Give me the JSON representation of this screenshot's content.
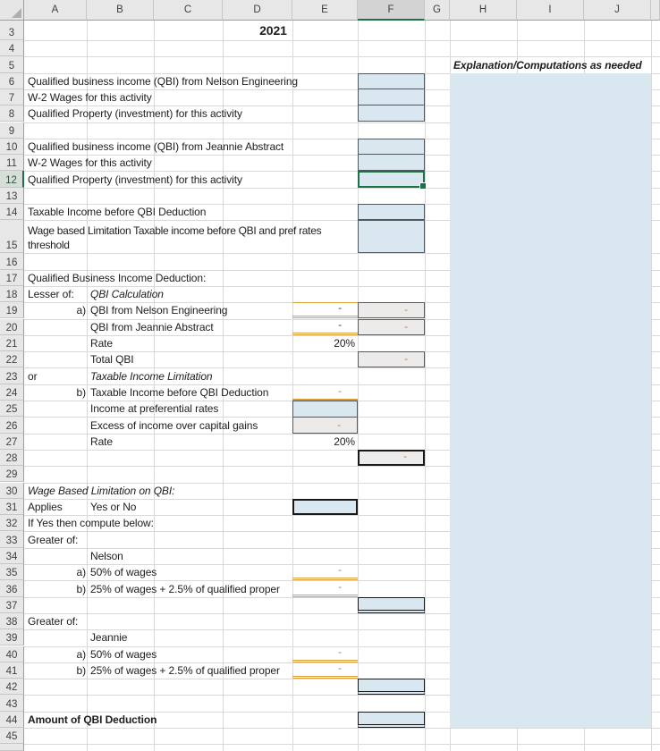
{
  "sheet_title": "QBI Deduction worksheet",
  "columns": [
    "A",
    "B",
    "C",
    "D",
    "E",
    "F",
    "G",
    "H",
    "I",
    "J"
  ],
  "rows": [
    "3",
    "4",
    "5",
    "6",
    "7",
    "8",
    "9",
    "10",
    "11",
    "12",
    "13",
    "14",
    "15",
    "16",
    "17",
    "18",
    "19",
    "20",
    "21",
    "22",
    "23",
    "24",
    "25",
    "26",
    "27",
    "28",
    "29",
    "30",
    "31",
    "32",
    "33",
    "34",
    "35",
    "36",
    "37",
    "38",
    "39",
    "40",
    "41",
    "42",
    "43",
    "44",
    "45"
  ],
  "selection": {
    "active_cell": "F12",
    "column": "F",
    "row": "12"
  },
  "explanation_area": {
    "range": "H6:J44",
    "fill": "#D9E8F0"
  },
  "colors": {
    "input_fill_blue": "#D9E8F0",
    "computed_fill_gray": "#ECEBE9",
    "accent_gold_border": "#DCA13D",
    "dash_orange": "#C57A4E",
    "selection_green": "#1E7145",
    "gridline": "#D9D9D9"
  },
  "cells": [
    {
      "r": 3,
      "c": "D",
      "text": "2021",
      "cls": "bold title",
      "name": "year-title",
      "inter": true
    },
    {
      "r": 5,
      "c": "H",
      "span": "J",
      "text": "Explanation/Computations as needed",
      "cls": "bold italic",
      "name": "explanation-header",
      "inter": false
    },
    {
      "r": 6,
      "c": "A",
      "span": "E",
      "text": "Qualified business income (QBI) from Nelson Engineering",
      "cls": "",
      "name": "label-qbi-nelson",
      "inter": true
    },
    {
      "r": 7,
      "c": "A",
      "span": "E",
      "text": "W-2 Wages for this activity",
      "cls": "",
      "name": "label-w2-wages-nelson",
      "inter": true
    },
    {
      "r": 8,
      "c": "A",
      "span": "E",
      "text": "Qualified Property (investment) for this activity",
      "cls": "",
      "name": "label-qualified-property-nelson",
      "inter": true
    },
    {
      "r": 10,
      "c": "A",
      "span": "E",
      "text": "Qualified business income (QBI) from Jeannie Abstract",
      "cls": "",
      "name": "label-qbi-jeannie",
      "inter": true
    },
    {
      "r": 11,
      "c": "A",
      "span": "E",
      "text": "W-2 Wages for this activity",
      "cls": "",
      "name": "label-w2-wages-jeannie",
      "inter": true
    },
    {
      "r": 12,
      "c": "A",
      "span": "E",
      "text": "Qualified Property (investment) for this activity",
      "cls": "",
      "name": "label-qualified-property-jeannie",
      "inter": true
    },
    {
      "r": 14,
      "c": "A",
      "span": "E",
      "text": "Taxable Income before QBI Deduction",
      "cls": "",
      "name": "label-taxable-income",
      "inter": true
    },
    {
      "r": 15,
      "c": "A",
      "span": "E",
      "text": "Wage based Limitation Taxable income before QBI and pref rates threshold",
      "cls": "wrap",
      "name": "label-wage-limitation-threshold",
      "inter": true
    },
    {
      "r": 17,
      "c": "A",
      "span": "E",
      "text": "Qualified Business Income Deduction:",
      "cls": "",
      "name": "label-qbi-deduction-section",
      "inter": true
    },
    {
      "r": 18,
      "c": "A",
      "text": "Lesser of:",
      "cls": "",
      "name": "label-lesser-of",
      "inter": true
    },
    {
      "r": 18,
      "c": "B",
      "span": "D",
      "text": "QBI Calculation",
      "cls": "italic",
      "name": "label-qbi-calculation",
      "inter": true
    },
    {
      "r": 19,
      "c": "A",
      "text": "a)",
      "cls": "right",
      "name": "label-a-qbi",
      "inter": true
    },
    {
      "r": 19,
      "c": "B",
      "span": "D",
      "text": "QBI from Nelson Engineering",
      "cls": "",
      "name": "label-qbi-from-nelson",
      "inter": true
    },
    {
      "r": 20,
      "c": "B",
      "span": "D",
      "text": "QBI from Jeannie Abstract",
      "cls": "",
      "name": "label-qbi-from-jeannie",
      "inter": true
    },
    {
      "r": 21,
      "c": "B",
      "span": "D",
      "text": "Rate",
      "cls": "",
      "name": "label-rate-1",
      "inter": true
    },
    {
      "r": 22,
      "c": "B",
      "span": "D",
      "text": "Total QBI",
      "cls": "",
      "name": "label-total-qbi",
      "inter": true
    },
    {
      "r": 23,
      "c": "A",
      "text": "or",
      "cls": "",
      "name": "label-or",
      "inter": true
    },
    {
      "r": 23,
      "c": "B",
      "span": "D",
      "text": "Taxable Income Limitation",
      "cls": "italic",
      "name": "label-taxable-income-limitation",
      "inter": true
    },
    {
      "r": 24,
      "c": "A",
      "text": "b)",
      "cls": "right",
      "name": "label-b-taxable",
      "inter": true
    },
    {
      "r": 24,
      "c": "B",
      "span": "D",
      "text": "Taxable Income before QBI Deduction",
      "cls": "",
      "name": "label-taxable-income-before-qbi",
      "inter": true
    },
    {
      "r": 25,
      "c": "B",
      "span": "D",
      "text": "Income at preferential rates",
      "cls": "",
      "name": "label-income-preferential",
      "inter": true
    },
    {
      "r": 26,
      "c": "B",
      "span": "D",
      "text": "Excess of income over capital gains",
      "cls": "",
      "name": "label-excess-income",
      "inter": true
    },
    {
      "r": 27,
      "c": "B",
      "span": "D",
      "text": "Rate",
      "cls": "",
      "name": "label-rate-2",
      "inter": true
    },
    {
      "r": 30,
      "c": "A",
      "span": "D",
      "text": "Wage Based Limitation on QBI:",
      "cls": "italic",
      "name": "label-wage-based-limitation",
      "inter": true
    },
    {
      "r": 31,
      "c": "A",
      "text": "Applies",
      "cls": "",
      "name": "label-applies",
      "inter": true
    },
    {
      "r": 31,
      "c": "B",
      "span": "D",
      "text": "Yes or No",
      "cls": "",
      "name": "label-yes-or-no",
      "inter": true
    },
    {
      "r": 32,
      "c": "A",
      "span": "D",
      "text": "If Yes then compute below:",
      "cls": "",
      "name": "label-if-yes-compute",
      "inter": true
    },
    {
      "r": 33,
      "c": "A",
      "text": "Greater of:",
      "cls": "",
      "name": "label-greater-of-1",
      "inter": true
    },
    {
      "r": 34,
      "c": "B",
      "text": "Nelson",
      "cls": "",
      "name": "label-nelson",
      "inter": true
    },
    {
      "r": 35,
      "c": "A",
      "text": "a)",
      "cls": "right",
      "name": "label-a-nelson-wages",
      "inter": true
    },
    {
      "r": 35,
      "c": "B",
      "span": "D",
      "text": "50% of wages",
      "cls": "",
      "name": "label-50-wages-nelson",
      "inter": true
    },
    {
      "r": 36,
      "c": "A",
      "text": "b)",
      "cls": "right",
      "name": "label-b-nelson-property",
      "inter": true
    },
    {
      "r": 36,
      "c": "B",
      "span": "D",
      "text": "25% of wages + 2.5% of qualified proper",
      "cls": "clip",
      "name": "label-25-wages-nelson",
      "inter": true
    },
    {
      "r": 38,
      "c": "A",
      "text": "Greater of:",
      "cls": "",
      "name": "label-greater-of-2",
      "inter": true
    },
    {
      "r": 39,
      "c": "B",
      "text": "Jeannie",
      "cls": "",
      "name": "label-jeannie",
      "inter": true
    },
    {
      "r": 40,
      "c": "A",
      "text": "a)",
      "cls": "right",
      "name": "label-a-jeannie-wages",
      "inter": true
    },
    {
      "r": 40,
      "c": "B",
      "span": "D",
      "text": "50% of wages",
      "cls": "",
      "name": "label-50-wages-jeannie",
      "inter": true
    },
    {
      "r": 41,
      "c": "A",
      "text": "b)",
      "cls": "right",
      "name": "label-b-jeannie-property",
      "inter": true
    },
    {
      "r": 41,
      "c": "B",
      "span": "D",
      "text": "25% of wages + 2.5% of qualified proper",
      "cls": "clip",
      "name": "label-25-wages-jeannie",
      "inter": true
    },
    {
      "r": 44,
      "c": "A",
      "span": "E",
      "text": "Amount of QBI Deduction",
      "cls": "bold",
      "name": "label-amount-qbi-deduction",
      "inter": true
    },
    {
      "r": 6,
      "c": "F",
      "text": "",
      "cls": "blue grpTop",
      "name": "input-qbi-nelson",
      "inter": true
    },
    {
      "r": 7,
      "c": "F",
      "text": "",
      "cls": "blue grpMid",
      "name": "input-w2-nelson",
      "inter": true
    },
    {
      "r": 8,
      "c": "F",
      "text": "",
      "cls": "blue grpMid",
      "name": "input-property-nelson",
      "inter": true
    },
    {
      "r": 10,
      "c": "F",
      "text": "",
      "cls": "blue grpTop",
      "name": "input-qbi-jeannie",
      "inter": true
    },
    {
      "r": 11,
      "c": "F",
      "text": "",
      "cls": "blue grpMid",
      "name": "input-w2-jeannie",
      "inter": true
    },
    {
      "r": 12,
      "c": "F",
      "text": "",
      "cls": "blue sel",
      "name": "active-cell-F12",
      "inter": true
    },
    {
      "r": 14,
      "c": "F",
      "text": "",
      "cls": "blue grpTop",
      "name": "input-taxable-income",
      "inter": true
    },
    {
      "r": 15,
      "c": "F",
      "text": "",
      "cls": "blue grpTop",
      "name": "input-wage-limitation-threshold",
      "inter": true
    },
    {
      "r": 19,
      "c": "E",
      "text": "-",
      "cls": "dashD goldTop goldDbl",
      "name": "value-qbi-nelson",
      "inter": true
    },
    {
      "r": 19,
      "c": "F",
      "text": "-",
      "cls": "grayv dashO",
      "name": "calc-qbi-nelson",
      "inter": true
    },
    {
      "r": 20,
      "c": "E",
      "text": "-",
      "cls": "dashD goldDbl",
      "name": "value-qbi-jeannie",
      "inter": true
    },
    {
      "r": 20,
      "c": "F",
      "text": "-",
      "cls": "grayv dashO",
      "name": "calc-qbi-jeannie",
      "inter": true
    },
    {
      "r": 21,
      "c": "E",
      "text": "20%",
      "cls": "pct",
      "name": "value-rate-1",
      "inter": true
    },
    {
      "r": 22,
      "c": "F",
      "text": "-",
      "cls": "grayv dashO",
      "name": "calc-total-qbi",
      "inter": true
    },
    {
      "r": 24,
      "c": "E",
      "text": "-",
      "cls": "dashO goldSingle",
      "name": "value-taxable-income-before-qbi",
      "inter": true
    },
    {
      "r": 25,
      "c": "E",
      "text": "",
      "cls": "blue boxTopPart",
      "name": "input-income-preferential",
      "inter": true
    },
    {
      "r": 26,
      "c": "E",
      "text": "-",
      "cls": "grayv dashO",
      "name": "calc-excess-income",
      "inter": true
    },
    {
      "r": 27,
      "c": "E",
      "text": "20%",
      "cls": "pct",
      "name": "value-rate-2",
      "inter": true
    },
    {
      "r": 28,
      "c": "F",
      "text": "-",
      "cls": "grayv dashO boxBlack",
      "name": "calc-taxable-income-limitation",
      "inter": true
    },
    {
      "r": 31,
      "c": "E",
      "text": "",
      "cls": "blue boxBlack",
      "name": "input-wage-limitation-applies",
      "inter": true
    },
    {
      "r": 35,
      "c": "E",
      "text": "-",
      "cls": "dashO goldDbl",
      "name": "value-50-wages-nelson",
      "inter": true
    },
    {
      "r": 36,
      "c": "E",
      "text": "-",
      "cls": "dashO goldDbl",
      "name": "value-25-wages-nelson",
      "inter": true
    },
    {
      "r": 37,
      "c": "F",
      "text": "",
      "cls": "blue total",
      "name": "result-nelson-limitation",
      "inter": true
    },
    {
      "r": 40,
      "c": "E",
      "text": "-",
      "cls": "dashO goldDbl",
      "name": "value-50-wages-jeannie",
      "inter": true
    },
    {
      "r": 41,
      "c": "E",
      "text": "-",
      "cls": "dashO goldDbl",
      "name": "value-25-wages-jeannie",
      "inter": true
    },
    {
      "r": 42,
      "c": "F",
      "text": "",
      "cls": "blue total",
      "name": "result-jeannie-limitation",
      "inter": true
    },
    {
      "r": 44,
      "c": "F",
      "text": "",
      "cls": "blue total",
      "name": "input-amount-qbi-deduction",
      "inter": true
    }
  ]
}
